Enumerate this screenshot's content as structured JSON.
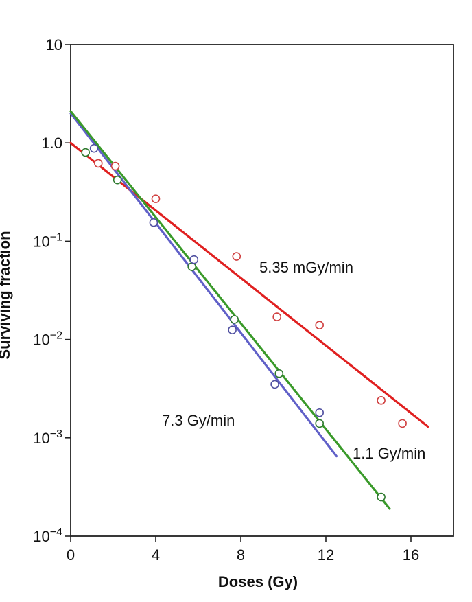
{
  "chart_data": {
    "type": "scatter",
    "xlabel": "Doses (Gy)",
    "ylabel": "Surviving fraction",
    "xlim": [
      0,
      18
    ],
    "ylim": [
      0.0001,
      10
    ],
    "y_scale": "log",
    "grid": false,
    "x_ticks": [
      "0",
      "4",
      "8",
      "12",
      "16"
    ],
    "y_ticks": [
      "10",
      "1.0",
      "10−1",
      "10−2",
      "10−3",
      "10−4"
    ],
    "series": [
      {
        "name": "5.35 mGy/min",
        "color": "#e02020",
        "marker_color": "#d04040",
        "points": [
          [
            1.3,
            0.62
          ],
          [
            2.1,
            0.58
          ],
          [
            4.0,
            0.27
          ],
          [
            7.8,
            0.07
          ],
          [
            9.7,
            0.017
          ],
          [
            11.7,
            0.014
          ],
          [
            14.6,
            0.0024
          ],
          [
            15.6,
            0.0014
          ]
        ],
        "fit": [
          [
            0,
            1.0
          ],
          [
            16.8,
            0.0013
          ]
        ]
      },
      {
        "name": "1.1 Gy/min",
        "color": "#3a9a2a",
        "marker_color": "#2e7a2e",
        "points": [
          [
            0.7,
            0.8
          ],
          [
            2.2,
            0.42
          ],
          [
            5.7,
            0.055
          ],
          [
            7.7,
            0.016
          ],
          [
            9.8,
            0.0045
          ],
          [
            11.7,
            0.0014
          ],
          [
            14.6,
            0.00025
          ]
        ],
        "fit": [
          [
            0,
            2.1
          ],
          [
            15.0,
            0.00019
          ]
        ]
      },
      {
        "name": "7.3 Gy/min",
        "color": "#6060c8",
        "marker_color": "#5050a0",
        "points": [
          [
            1.1,
            0.88
          ],
          [
            3.9,
            0.155
          ],
          [
            5.8,
            0.065
          ],
          [
            7.6,
            0.0125
          ],
          [
            9.6,
            0.0035
          ],
          [
            11.7,
            0.0018
          ]
        ],
        "fit": [
          [
            0,
            2.0
          ],
          [
            12.5,
            0.00065
          ]
        ]
      }
    ]
  }
}
